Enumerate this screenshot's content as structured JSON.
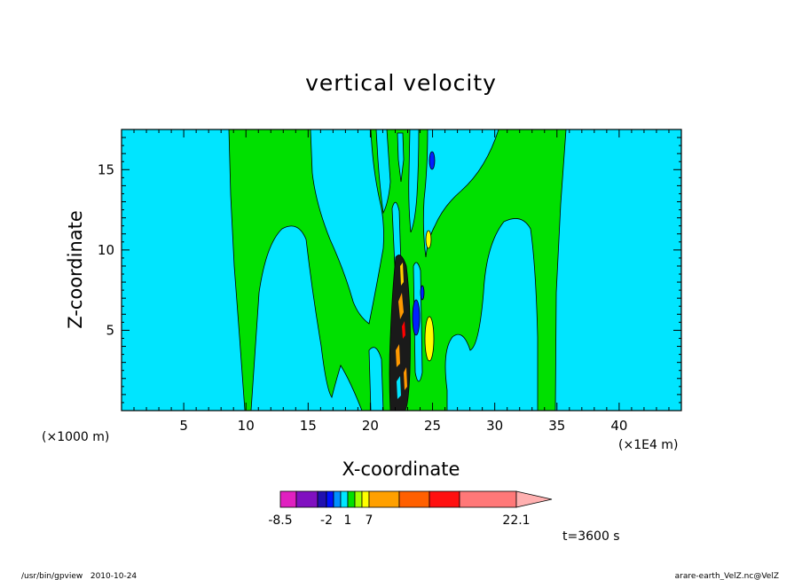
{
  "chart_data": {
    "type": "contour",
    "title": "vertical velocity",
    "xlabel": "X-coordinate",
    "ylabel": "Z-coordinate",
    "x_unit_left": "(×1000 m)",
    "x_unit_right": "(×1E4 m)",
    "xlim": [
      0,
      45
    ],
    "ylim": [
      0,
      17.5
    ],
    "x_ticks": [
      {
        "v": 5,
        "label": "5"
      },
      {
        "v": 10,
        "label": "10"
      },
      {
        "v": 15,
        "label": "15"
      },
      {
        "v": 20,
        "label": "20"
      },
      {
        "v": 25,
        "label": "25"
      },
      {
        "v": 30,
        "label": "30"
      },
      {
        "v": 35,
        "label": "35"
      },
      {
        "v": 40,
        "label": "40"
      }
    ],
    "y_ticks": [
      {
        "v": 5,
        "label": "5"
      },
      {
        "v": 10,
        "label": "10"
      },
      {
        "v": 15,
        "label": "15"
      }
    ],
    "colors": {
      "background_level": "#00e5ff",
      "positive_level": "#00e000",
      "yellow_level": "#ffff00",
      "blue_level": "#0000ff",
      "dark_core": "#1a1a1a",
      "orange_level": "#ff9900",
      "red_level": "#ff0000"
    },
    "colorbar": {
      "levels": [
        {
          "color": "#e020c0",
          "label": "-8.5"
        },
        {
          "color": "#8010c0",
          "label": ""
        },
        {
          "color": "#2010b0",
          "label": ""
        },
        {
          "color": "#0010ff",
          "label": "-2"
        },
        {
          "color": "#0090ff",
          "label": ""
        },
        {
          "color": "#00e5ff",
          "label": ""
        },
        {
          "color": "#00e000",
          "label": "1"
        },
        {
          "color": "#a0ff00",
          "label": ""
        },
        {
          "color": "#ffff00",
          "label": ""
        },
        {
          "color": "#ffa000",
          "label": "7"
        },
        {
          "color": "#ff6000",
          "label": ""
        },
        {
          "color": "#ff1010",
          "label": ""
        },
        {
          "color": "#ff7878",
          "label": "22.1"
        },
        {
          "color": "#ffb0b0",
          "label": ""
        }
      ]
    },
    "time_label": "t=3600 s"
  },
  "footer": {
    "left": "/usr/bin/gpview   2010-10-24",
    "right": "arare-earth_VelZ.nc@VelZ"
  }
}
